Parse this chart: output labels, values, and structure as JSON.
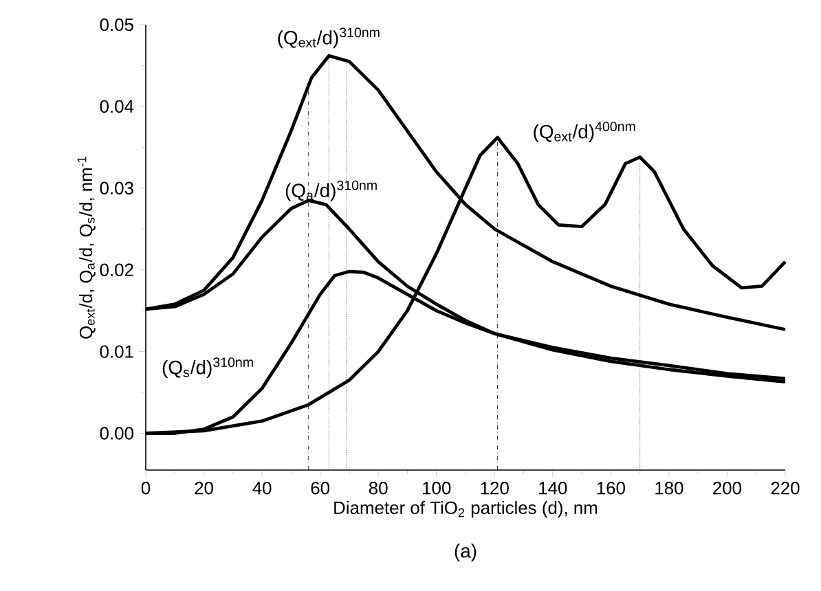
{
  "chart_data": {
    "type": "line",
    "xlabel": "Diameter of TiO$_{2}$ particles (d), nm",
    "ylabel": "Q$_{ext}$/d, Q$_{a}$/d, Q$_{s}$/d, nm$^{-1}$",
    "annotations": [
      "(a)"
    ],
    "xlim": [
      0,
      220
    ],
    "xticks": [
      0,
      20,
      40,
      60,
      80,
      100,
      120,
      140,
      160,
      180,
      200,
      220
    ],
    "ylim": [
      -0.0045,
      0.05
    ],
    "yticks": [
      {
        "value": 0,
        "label": "0.00"
      },
      {
        "value": 0.01,
        "label": "0.01"
      },
      {
        "value": 0.02,
        "label": "0.02"
      },
      {
        "value": 0.03,
        "label": "0.03"
      },
      {
        "value": 0.04,
        "label": "0.04"
      },
      {
        "value": 0.05,
        "label": "0.05"
      }
    ],
    "grid": false,
    "legend": false,
    "marker": "none",
    "line_style": "solid",
    "ref_lines": [
      {
        "axis": "x",
        "value": 56,
        "line_style": "dashed"
      },
      {
        "axis": "x",
        "value": 63,
        "line_style": "dotted"
      },
      {
        "axis": "x",
        "value": 69,
        "line_style": "dotted"
      },
      {
        "axis": "x",
        "value": 121,
        "line_style": "dashed"
      },
      {
        "axis": "x",
        "value": 170,
        "line_style": "dotted"
      }
    ],
    "series": [
      {
        "name": "(Q$_{ext}$/d)$^{310nm}$",
        "color": "#000000",
        "x": [
          0,
          10,
          20,
          30,
          40,
          50,
          57,
          63,
          70,
          80,
          90,
          100,
          110,
          120,
          140,
          160,
          180,
          200,
          220
        ],
        "values": [
          0.0152,
          0.0158,
          0.0175,
          0.0215,
          0.0285,
          0.037,
          0.0435,
          0.0462,
          0.0455,
          0.042,
          0.037,
          0.032,
          0.028,
          0.025,
          0.021,
          0.018,
          0.0158,
          0.0142,
          0.0127
        ]
      },
      {
        "name": "(Q$_{a}$/d)$^{310nm}$",
        "color": "#000000",
        "x": [
          0,
          10,
          20,
          30,
          40,
          50,
          56,
          62,
          70,
          80,
          90,
          100,
          110,
          120,
          140,
          160,
          180,
          200,
          220
        ],
        "values": [
          0.0152,
          0.0155,
          0.017,
          0.0195,
          0.024,
          0.0275,
          0.0285,
          0.028,
          0.025,
          0.021,
          0.018,
          0.0158,
          0.0138,
          0.0122,
          0.0105,
          0.0092,
          0.0083,
          0.0073,
          0.0067
        ]
      },
      {
        "name": "(Q$_{s}$/d)$^{310nm}$",
        "color": "#000000",
        "x": [
          0,
          10,
          20,
          30,
          40,
          50,
          60,
          65,
          70,
          75,
          80,
          90,
          100,
          110,
          120,
          140,
          160,
          180,
          200,
          220
        ],
        "values": [
          0,
          0,
          0.0005,
          0.002,
          0.0055,
          0.011,
          0.017,
          0.0193,
          0.0198,
          0.0197,
          0.019,
          0.017,
          0.015,
          0.0135,
          0.0122,
          0.0102,
          0.0088,
          0.0078,
          0.007,
          0.0063
        ]
      },
      {
        "name": "(Q$_{ext}$/d)$^{400nm}$",
        "color": "#000000",
        "x": [
          0,
          20,
          40,
          56,
          70,
          80,
          90,
          100,
          110,
          115,
          121,
          128,
          135,
          142,
          150,
          158,
          165,
          170,
          175,
          185,
          195,
          205,
          212,
          220
        ],
        "values": [
          0,
          0.0003,
          0.0015,
          0.0035,
          0.0065,
          0.01,
          0.015,
          0.022,
          0.03,
          0.034,
          0.0362,
          0.033,
          0.028,
          0.0255,
          0.0253,
          0.028,
          0.033,
          0.0338,
          0.032,
          0.025,
          0.0205,
          0.0178,
          0.018,
          0.021
        ]
      }
    ]
  }
}
